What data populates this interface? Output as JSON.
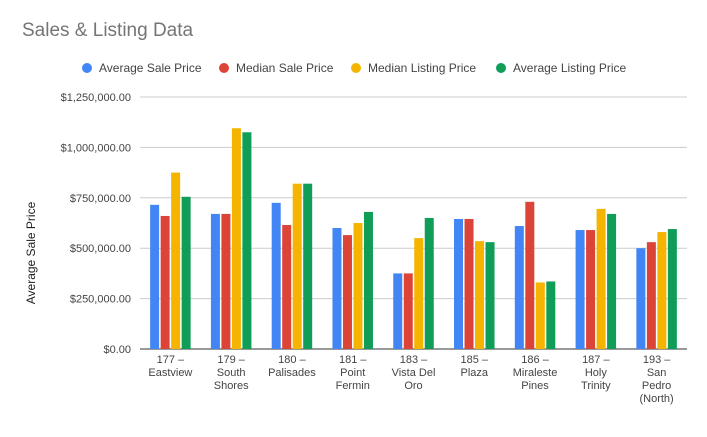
{
  "chart_data": {
    "type": "bar",
    "title": "Sales & Listing Data",
    "xlabel": "",
    "ylabel": "Average Sale Price",
    "ylim": [
      0,
      1250000
    ],
    "yticks": [
      0,
      250000,
      500000,
      750000,
      1000000,
      1250000
    ],
    "ytick_labels": [
      "$0.00",
      "$250,000.00",
      "$500,000.00",
      "$750,000.00",
      "$1,000,000.00",
      "$1,250,000.00"
    ],
    "grid": true,
    "legend_position": "top",
    "categories": [
      [
        "177 –",
        "Eastview"
      ],
      [
        "179 –",
        "South",
        "Shores"
      ],
      [
        "180 –",
        "Palisades"
      ],
      [
        "181 –",
        "Point",
        "Fermin"
      ],
      [
        "183 –",
        "Vista Del",
        "Oro"
      ],
      [
        "185 –",
        "Plaza"
      ],
      [
        "186 –",
        "Miraleste",
        "Pines"
      ],
      [
        "187 –",
        "Holy",
        "Trinity"
      ],
      [
        "193 –",
        "San",
        "Pedro",
        "(North)"
      ]
    ],
    "series": [
      {
        "name": "Average Sale Price",
        "color": "#4285F4",
        "values": [
          715000,
          670000,
          725000,
          600000,
          375000,
          645000,
          610000,
          590000,
          500000
        ]
      },
      {
        "name": "Median Sale Price",
        "color": "#DB4437",
        "values": [
          660000,
          670000,
          615000,
          565000,
          375000,
          645000,
          730000,
          590000,
          530000
        ]
      },
      {
        "name": "Median Listing Price",
        "color": "#F4B400",
        "values": [
          875000,
          1095000,
          820000,
          625000,
          550000,
          535000,
          330000,
          695000,
          580000
        ]
      },
      {
        "name": "Average Listing Price",
        "color": "#0F9D58",
        "values": [
          755000,
          1075000,
          820000,
          680000,
          650000,
          530000,
          335000,
          670000,
          595000
        ]
      }
    ]
  }
}
